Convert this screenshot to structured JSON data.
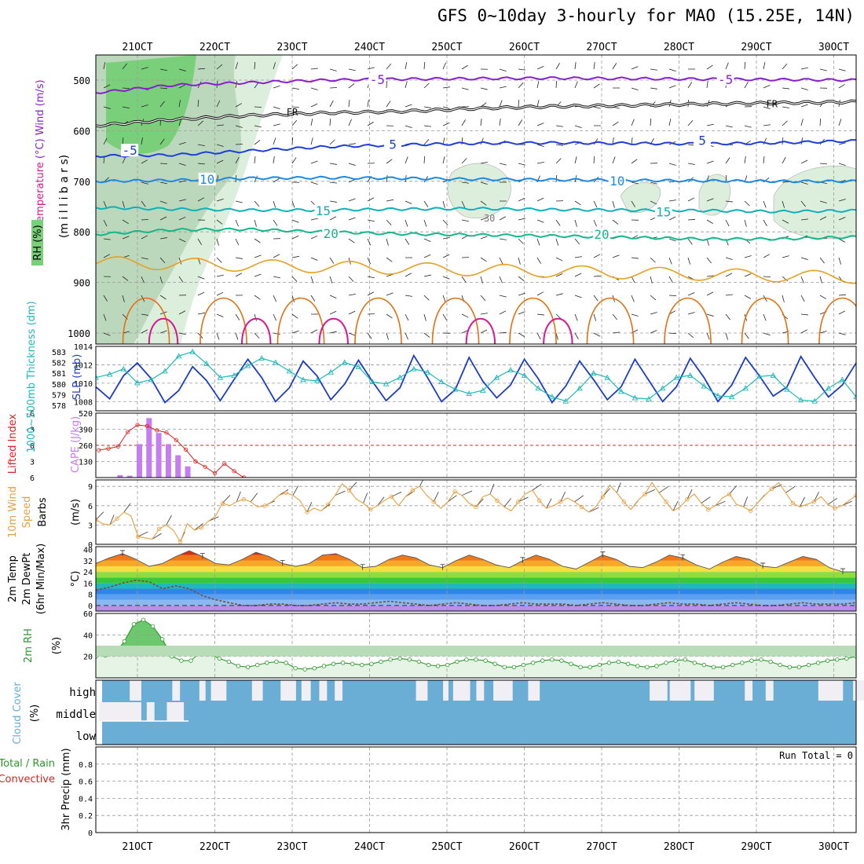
{
  "title": "GFS 0~10day 3-hourly for MAO (15.25E, 14N)",
  "date_ticks": [
    "21OCT",
    "22OCT",
    "23OCT",
    "24OCT",
    "25OCT",
    "26OCT",
    "27OCT",
    "28OCT",
    "29OCT",
    "30OCT"
  ],
  "colors": {
    "temp_m5": "#8a1fd0",
    "temp_fr": "#111111",
    "temp_5": "#1e3fd8",
    "temp_10": "#1b8ae0",
    "temp_15": "#10b0b8",
    "temp_20": "#12b88a",
    "temp_25": "#e8a020",
    "temp_30": "#e07010",
    "temp_35": "#d81890",
    "rh_light": "#dcefdc",
    "rh_mid": "#bcd8bc",
    "rh_green": "#7ad07a",
    "slp": "#1a3cc8",
    "thickness": "#20b8b8",
    "lifted": "#e02020",
    "cape": "#c47ef0",
    "wind10": "#e8a040",
    "rh2m": "#2a9a2a",
    "cloud": "#6aaed6",
    "grid": "#9a9a9a"
  },
  "chart_data": [
    {
      "type": "contour",
      "panel": "upper-air",
      "ylabel_parts": [
        "RH (%)",
        "Temperature (°C)",
        "Wind (m/s)"
      ],
      "ylabel_unit": "(m i l l i b a r s)",
      "yticks": [
        500,
        600,
        700,
        800,
        900,
        1000
      ],
      "contour_labels": [
        {
          "text": "-5",
          "date_index": 3.1
        },
        {
          "text": "-5",
          "date_index": 7.6
        },
        {
          "text": "FR",
          "date_index": 2.0
        },
        {
          "text": "FR",
          "date_index": 8.2
        },
        {
          "text": "-5",
          "date_index": -0.1
        },
        {
          "text": "5",
          "date_index": 3.3
        },
        {
          "text": "5",
          "date_index": 7.3
        },
        {
          "text": "10",
          "date_index": 0.9
        },
        {
          "text": "10",
          "date_index": 6.2
        },
        {
          "text": "15",
          "date_index": 2.4
        },
        {
          "text": "15",
          "date_index": 6.8
        },
        {
          "text": "20",
          "date_index": 2.5
        },
        {
          "text": "20",
          "date_index": 6.0
        },
        {
          "text": "30",
          "date_index": 4.55
        }
      ],
      "isotherms": [
        {
          "name": "-5",
          "color_key": "temp_m5",
          "p": [
            525,
            510,
            505,
            500,
            498,
            497,
            496,
            497,
            498,
            499,
            500
          ]
        },
        {
          "name": "FR",
          "color_key": "temp_fr",
          "p": [
            590,
            578,
            570,
            565,
            562,
            556,
            552,
            550,
            547,
            545,
            543
          ]
        },
        {
          "name": "5",
          "color_key": "temp_5",
          "p": [
            650,
            648,
            640,
            632,
            628,
            625,
            624,
            625,
            626,
            624,
            620
          ]
        },
        {
          "name": "10",
          "color_key": "temp_10",
          "p": [
            700,
            698,
            694,
            693,
            694,
            696,
            697,
            698,
            699,
            700,
            700
          ]
        },
        {
          "name": "15",
          "color_key": "temp_15",
          "p": [
            752,
            755,
            757,
            757,
            755,
            754,
            756,
            757,
            758,
            760,
            758
          ]
        },
        {
          "name": "20",
          "color_key": "temp_20",
          "p": [
            805,
            796,
            795,
            800,
            804,
            806,
            808,
            811,
            814,
            814,
            810
          ]
        }
      ]
    },
    {
      "type": "line",
      "panel": "slp-thickness",
      "ylabel": "SLP (mb)",
      "ylabel2": "1000~500mb Thickness (dm)",
      "yticks": [
        1008,
        1010,
        1012,
        1014
      ],
      "yticks2": [
        578,
        579,
        580,
        581,
        582,
        583
      ],
      "ylim": [
        1007,
        1014
      ],
      "ylim2": [
        577.5,
        583.5
      ],
      "series": [
        {
          "name": "SLP (mb)",
          "color_key": "slp",
          "values": [
            1009.6,
            1008.3,
            1010.8,
            1012.2,
            1010.5,
            1007.9,
            1009.2,
            1011.8,
            1010.3,
            1008.1,
            1010.4,
            1012.6,
            1010.6,
            1008.0,
            1009.5,
            1012.4,
            1010.8,
            1008.2,
            1009.9,
            1012.5,
            1010.2,
            1008.1,
            1009.5,
            1013.0,
            1010.6,
            1008.0,
            1009.3,
            1012.8,
            1010.2,
            1008.4,
            1009.8,
            1012.6,
            1010.5,
            1007.9,
            1009.7,
            1012.4,
            1010.4,
            1008.2,
            1009.6,
            1012.6,
            1010.3,
            1008.0,
            1009.6,
            1012.7,
            1010.6,
            1008.0,
            1009.8,
            1012.8,
            1010.8,
            1008.6,
            1009.6,
            1012.9,
            1010.6,
            1008.5,
            1009.8,
            1012.2
          ]
        },
        {
          "name": "1000~500mb Thickness (dm)",
          "color_key": "thickness",
          "values": [
            580.6,
            580.9,
            581.4,
            580.1,
            580.4,
            581.2,
            582.6,
            583.0,
            581.9,
            580.6,
            580.8,
            581.7,
            582.4,
            582.0,
            581.2,
            580.4,
            580.3,
            581.1,
            582.0,
            581.6,
            580.2,
            580.0,
            580.6,
            581.4,
            581.1,
            580.2,
            579.5,
            579.1,
            579.4,
            580.6,
            581.3,
            580.8,
            579.6,
            578.8,
            578.4,
            579.6,
            581.0,
            580.6,
            579.3,
            578.7,
            578.6,
            579.6,
            580.6,
            580.8,
            579.8,
            578.9,
            578.8,
            579.6,
            580.7,
            580.8,
            579.5,
            578.5,
            578.4,
            579.6,
            580.4,
            578.8
          ]
        }
      ]
    },
    {
      "type": "bar",
      "panel": "cape-lifted-index",
      "ylabel": "CAPE (J/kg)",
      "ylabel2": "Lifted Index",
      "yticks": [
        130,
        260,
        390,
        520
      ],
      "yticks2": [
        6,
        3,
        0,
        -3,
        -6
      ],
      "ylim": [
        0,
        520
      ],
      "ylim2": [
        6,
        -6
      ],
      "cape_values": [
        0,
        20,
        15,
        270,
        480,
        360,
        270,
        180,
        90,
        0
      ],
      "lifted_index_values": [
        0.9,
        0.6,
        0.2,
        -2.5,
        -3.8,
        -3.6,
        -2.8,
        -2.4,
        -1.0,
        0.8,
        3.0,
        4.0,
        5.2,
        3.4,
        4.8,
        6.0
      ]
    },
    {
      "type": "line",
      "panel": "wind10m",
      "ylabel": "10m Wind Speed (m/s) & Barbs",
      "yticks": [
        0,
        3,
        6,
        9
      ],
      "ylim": [
        0,
        10
      ],
      "series": [
        {
          "name": "10m Wind Speed",
          "color_key": "wind10",
          "values": [
            3.8,
            3.2,
            3.0,
            4.0,
            5.0,
            4.4,
            1.2,
            1.0,
            0.8,
            2.4,
            3.0,
            2.2,
            0.4,
            3.2,
            2.2,
            2.6,
            3.6,
            4.4,
            6.4,
            6.0,
            6.6,
            7.0,
            6.6,
            5.8,
            6.0,
            6.6,
            7.6,
            8.0,
            7.6,
            6.8,
            5.0,
            5.6,
            5.2,
            6.2,
            7.6,
            9.4,
            8.4,
            7.0,
            6.4,
            5.4,
            6.0,
            6.8,
            7.4,
            6.0,
            7.4,
            8.4,
            9.0,
            7.6,
            6.6,
            5.6,
            6.6,
            8.2,
            7.6,
            6.4,
            5.8,
            7.4,
            7.8,
            6.8,
            5.8,
            5.2,
            6.6,
            7.8,
            8.4,
            6.8,
            5.6,
            6.0,
            6.6,
            7.2,
            6.6,
            5.8,
            5.0,
            5.8,
            7.4,
            9.2,
            8.0,
            6.6,
            5.4,
            6.8,
            7.8,
            9.6,
            8.0,
            6.6,
            5.2,
            5.8,
            7.0,
            7.8,
            6.4,
            5.4,
            6.0,
            7.2,
            7.8,
            6.2,
            5.8,
            5.2,
            6.4,
            7.6,
            8.6,
            9.6,
            8.0,
            6.4,
            5.8,
            6.2,
            6.6,
            7.4,
            6.2,
            5.6,
            6.0,
            6.8,
            7.6
          ]
        }
      ]
    },
    {
      "type": "area",
      "panel": "temperature-2m",
      "ylabel": "2m Temp 2m DewPt (6hr Min/Max) (°C)",
      "yticks": [
        0,
        8,
        16,
        24,
        32,
        40
      ],
      "ylim": [
        -4,
        42
      ],
      "color_bands": [
        {
          "from": -4,
          "to": 0,
          "color": "#b890ec"
        },
        {
          "from": 0,
          "to": 4,
          "color": "#8ab8f0"
        },
        {
          "from": 4,
          "to": 8,
          "color": "#5a9ff0"
        },
        {
          "from": 8,
          "to": 12,
          "color": "#2f86e8"
        },
        {
          "from": 12,
          "to": 16,
          "color": "#20b8b8"
        },
        {
          "from": 16,
          "to": 20,
          "color": "#38c838"
        },
        {
          "from": 20,
          "to": 24,
          "color": "#8fde40"
        },
        {
          "from": 24,
          "to": 28,
          "color": "#f2e040"
        },
        {
          "from": 28,
          "to": 32,
          "color": "#f7a828"
        },
        {
          "from": 32,
          "to": 36,
          "color": "#f07818"
        },
        {
          "from": 36,
          "to": 40,
          "color": "#d83010"
        }
      ],
      "series": [
        {
          "name": "2m Temp",
          "values": [
            30,
            34,
            37,
            33,
            28,
            30,
            35,
            39,
            35,
            30,
            29,
            33,
            38,
            35,
            30,
            28,
            30,
            36,
            37,
            33,
            27,
            28,
            33,
            36,
            34,
            29,
            27,
            32,
            36,
            33,
            29,
            27,
            32,
            36,
            33,
            28,
            26,
            31,
            36,
            33,
            28,
            27,
            31,
            36,
            34,
            29,
            26,
            31,
            35,
            33,
            28,
            27,
            31,
            35,
            33,
            27,
            24,
            24
          ]
        },
        {
          "name": "2m DewPt",
          "values": [
            11,
            13,
            16,
            18,
            17,
            12,
            14,
            12,
            7,
            4,
            2,
            0,
            0,
            1,
            1,
            0,
            0,
            1,
            2,
            1,
            1,
            2,
            3,
            2,
            1,
            0,
            1,
            2,
            1,
            0,
            0,
            1,
            2,
            1,
            1,
            1,
            0,
            1,
            2,
            1,
            0,
            0,
            1,
            2,
            1,
            1,
            0,
            1,
            2,
            1,
            0,
            0,
            1,
            2,
            1,
            1,
            1,
            2
          ]
        }
      ]
    },
    {
      "type": "area",
      "panel": "rh2m",
      "ylabel": "2m RH",
      "ylabel_unit": "(%)",
      "yticks": [
        20,
        40,
        60
      ],
      "ylim": [
        0,
        60
      ],
      "series": [
        {
          "name": "2m RH",
          "color_key": "rh2m",
          "values": [
            20,
            21,
            22,
            34,
            50,
            54,
            48,
            36,
            20,
            16,
            16,
            24,
            22,
            18,
            15,
            11,
            10,
            12,
            14,
            15,
            14,
            9,
            8,
            9,
            11,
            13,
            14,
            13,
            12,
            13,
            15,
            17,
            18,
            17,
            15,
            12,
            11,
            12,
            15,
            17,
            17,
            16,
            13,
            10,
            10,
            12,
            14,
            16,
            17,
            16,
            13,
            10,
            10,
            12,
            14,
            15,
            13,
            11,
            10,
            11,
            14,
            16,
            17,
            14,
            12,
            10,
            10,
            12,
            14,
            16,
            17,
            15,
            12,
            10,
            10,
            12,
            14,
            16,
            17,
            18,
            20
          ]
        }
      ]
    },
    {
      "type": "bar",
      "panel": "cloud-cover",
      "ylabel": "Cloud Cover",
      "ylabel_unit": "(%)",
      "layers": [
        "high",
        "middle",
        "low"
      ],
      "high_clear_intervals": [
        [
          0.4,
          0.55
        ],
        [
          0.95,
          1.05
        ],
        [
          1.3,
          1.38
        ],
        [
          1.45,
          1.65
        ],
        [
          1.98,
          2.12
        ],
        [
          2.35,
          2.55
        ],
        [
          2.62,
          2.74
        ],
        [
          2.85,
          2.95
        ],
        [
          3.05,
          3.15
        ],
        [
          4.1,
          4.25
        ],
        [
          4.45,
          4.52
        ],
        [
          4.58,
          4.8
        ],
        [
          4.88,
          4.98
        ],
        [
          5.1,
          5.35
        ],
        [
          5.55,
          5.7
        ],
        [
          7.12,
          7.35
        ],
        [
          7.38,
          7.65
        ],
        [
          7.7,
          7.95
        ],
        [
          8.35,
          8.45
        ],
        [
          8.62,
          8.72
        ],
        [
          9.3,
          9.62
        ],
        [
          9.75,
          10.15
        ]
      ],
      "middle_clear_intervals": [
        [
          0.0,
          0.55
        ],
        [
          0.62,
          0.72
        ],
        [
          0.88,
          1.1
        ]
      ]
    },
    {
      "type": "bar",
      "panel": "precipitation",
      "ylabel": "3hr Precip (mm)",
      "ylabel_left_top": "Total / Rain",
      "ylabel_left_bottom": "Convective",
      "yticks": [
        0,
        0.2,
        0.4,
        0.6,
        0.8
      ],
      "ylim": [
        0,
        1.0
      ],
      "run_total_label": "Run Total = 0",
      "values": []
    }
  ]
}
